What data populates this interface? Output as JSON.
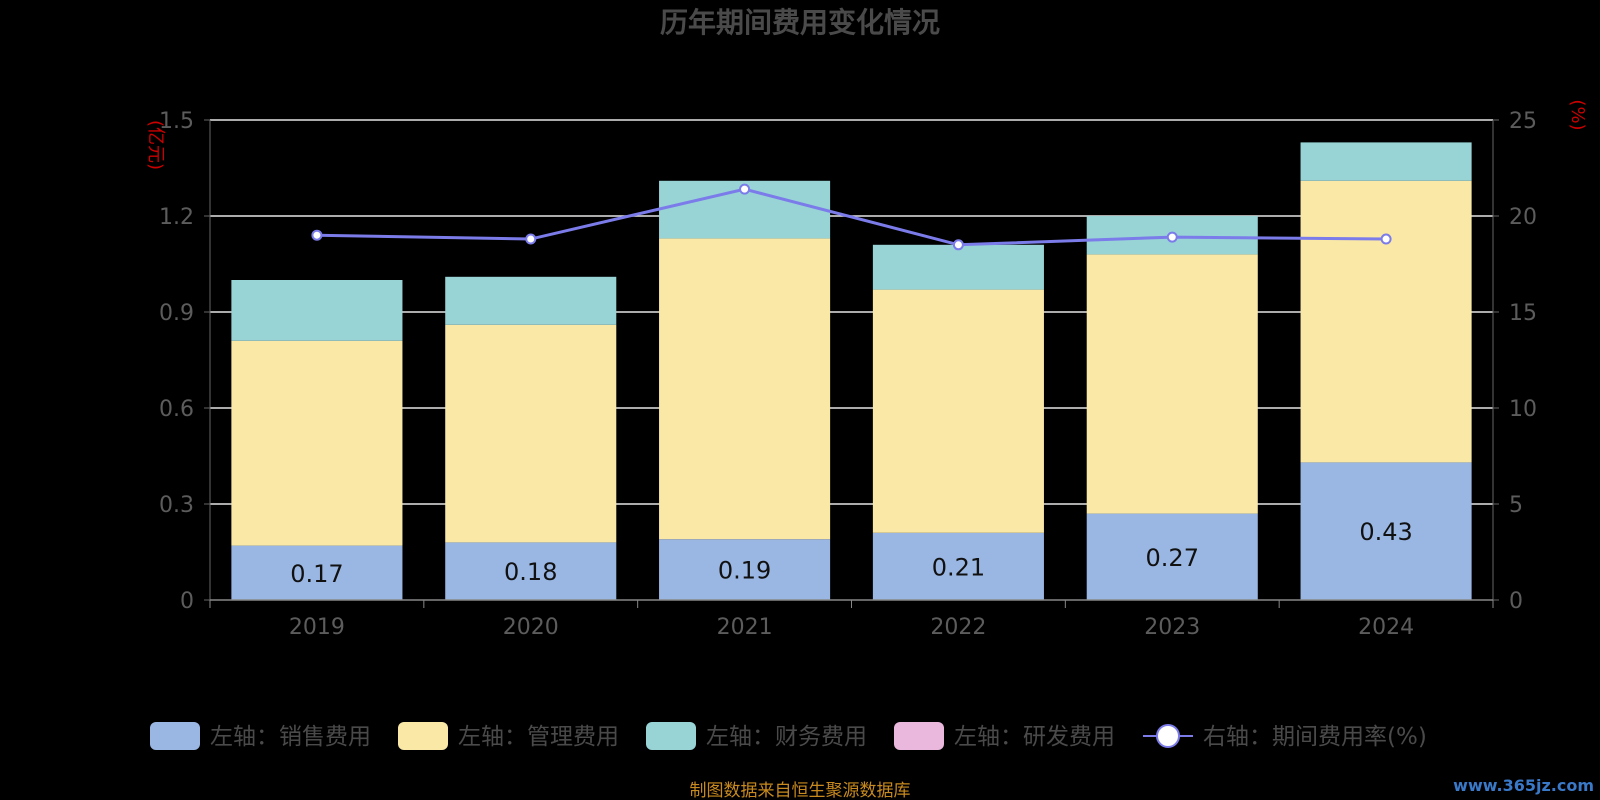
{
  "chart_data": {
    "type": "bar",
    "stacked": true,
    "title": "历年期间费用变化情况",
    "y_left_unit": "(亿元)",
    "y_right_unit": "(%)",
    "categories": [
      "2019",
      "2020",
      "2021",
      "2022",
      "2023",
      "2024"
    ],
    "y_left_ticks": [
      "0",
      "0.3",
      "0.6",
      "0.9",
      "1.2",
      "1.5"
    ],
    "y_right_ticks": [
      "0",
      "5",
      "10",
      "15",
      "20",
      "25"
    ],
    "ylim_left": [
      0,
      1.5
    ],
    "ylim_right": [
      0,
      25
    ],
    "grid": true,
    "legend_position": "bottom",
    "series": [
      {
        "name": "左轴：销售费用",
        "color": "#9ab6e3",
        "values": [
          0.17,
          0.18,
          0.19,
          0.21,
          0.27,
          0.43
        ],
        "show_labels": true
      },
      {
        "name": "左轴：管理费用",
        "color": "#f9e8a6",
        "values": [
          0.64,
          0.68,
          0.94,
          0.76,
          0.81,
          0.88
        ],
        "show_labels": false
      },
      {
        "name": "左轴：财务费用",
        "color": "#98d4d6",
        "values": [
          0.19,
          0.15,
          0.18,
          0.14,
          0.12,
          0.12
        ],
        "show_labels": false
      },
      {
        "name": "左轴：研发费用",
        "color": "#e9b8dc",
        "values": [
          0,
          0,
          0,
          0,
          0,
          0
        ],
        "show_labels": false
      }
    ],
    "line_series": {
      "name": "右轴：期间费用率(%)",
      "color": "#7b7bea",
      "values": [
        19.0,
        18.8,
        21.4,
        18.5,
        18.9,
        18.8
      ]
    },
    "source_note": "制图数据来自恒生聚源数据库",
    "watermark": "www.365jz.com"
  }
}
